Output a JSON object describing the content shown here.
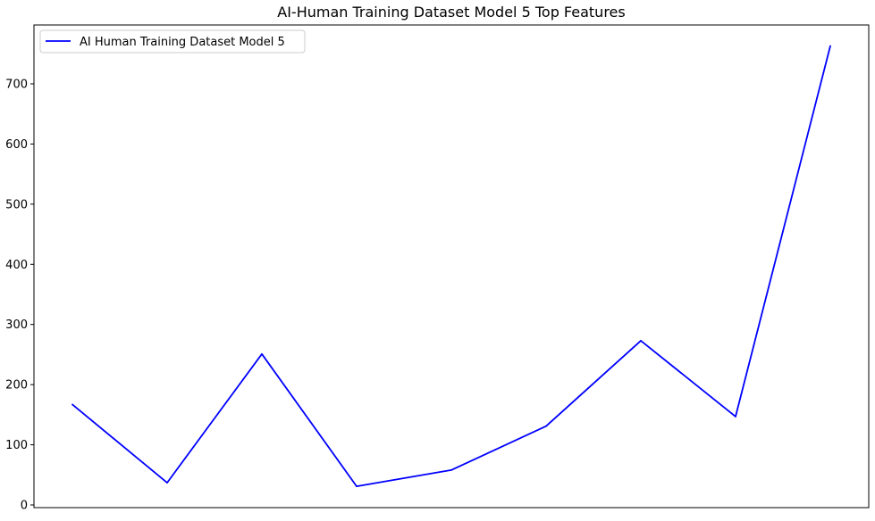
{
  "chart_data": {
    "type": "line",
    "title": "AI-Human Training Dataset Model 5 Top Features",
    "xlabel": "",
    "ylabel": "",
    "x_ticks_visible": false,
    "ylim": [
      0,
      800
    ],
    "y_ticks": [
      0,
      100,
      200,
      300,
      400,
      500,
      600,
      700
    ],
    "grid": false,
    "legend": "top-left",
    "series": [
      {
        "name": "AI Human Training Dataset Model 5",
        "color": "#0000ff",
        "values": [
          167,
          37,
          251,
          31,
          58,
          131,
          273,
          147,
          763
        ]
      }
    ]
  }
}
